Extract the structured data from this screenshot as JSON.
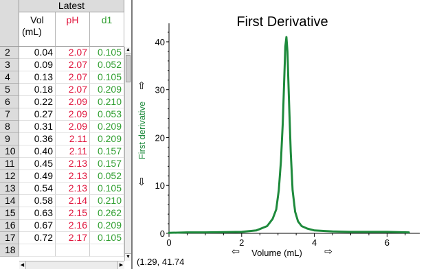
{
  "table": {
    "group_label": "Latest",
    "columns": [
      {
        "line1": "Vol",
        "line2": "(mL)",
        "color": "#000000"
      },
      {
        "line1": "pH",
        "line2": "",
        "color": "#e0143c"
      },
      {
        "line1": "d1",
        "line2": "",
        "color": "#2f9e2f"
      }
    ],
    "rows": [
      {
        "n": "2",
        "vol": "0.04",
        "ph": "2.07",
        "d1": "0.105"
      },
      {
        "n": "3",
        "vol": "0.09",
        "ph": "2.07",
        "d1": "0.052"
      },
      {
        "n": "4",
        "vol": "0.13",
        "ph": "2.07",
        "d1": "0.105"
      },
      {
        "n": "5",
        "vol": "0.18",
        "ph": "2.07",
        "d1": "0.209"
      },
      {
        "n": "6",
        "vol": "0.22",
        "ph": "2.09",
        "d1": "0.210"
      },
      {
        "n": "7",
        "vol": "0.27",
        "ph": "2.09",
        "d1": "0.053"
      },
      {
        "n": "8",
        "vol": "0.31",
        "ph": "2.09",
        "d1": "0.209"
      },
      {
        "n": "9",
        "vol": "0.36",
        "ph": "2.11",
        "d1": "0.209"
      },
      {
        "n": "10",
        "vol": "0.40",
        "ph": "2.11",
        "d1": "0.157"
      },
      {
        "n": "11",
        "vol": "0.45",
        "ph": "2.13",
        "d1": "0.157"
      },
      {
        "n": "12",
        "vol": "0.49",
        "ph": "2.13",
        "d1": "0.052"
      },
      {
        "n": "13",
        "vol": "0.54",
        "ph": "2.13",
        "d1": "0.105"
      },
      {
        "n": "14",
        "vol": "0.58",
        "ph": "2.14",
        "d1": "0.210"
      },
      {
        "n": "15",
        "vol": "0.63",
        "ph": "2.15",
        "d1": "0.262"
      },
      {
        "n": "16",
        "vol": "0.67",
        "ph": "2.16",
        "d1": "0.209"
      },
      {
        "n": "17",
        "vol": "0.72",
        "ph": "2.17",
        "d1": "0.105"
      },
      {
        "n": "18",
        "vol": "",
        "ph": "",
        "d1": ""
      }
    ]
  },
  "graph": {
    "cursor_readout": "(1.29, 41.74",
    "autoscale_arrows": {
      "y_up": "⇧",
      "y_down": "⇩",
      "x_left": "⇦",
      "x_right": "⇨"
    }
  },
  "chart_data": {
    "type": "line",
    "title": "First Derivative",
    "xlabel": "Volume (mL)",
    "ylabel": "First derivative",
    "xlim": [
      0,
      6.9
    ],
    "ylim": [
      0,
      43
    ],
    "x_ticks": [
      "0",
      "2",
      "4",
      "6"
    ],
    "y_ticks": [
      "0",
      "10",
      "20",
      "30",
      "40"
    ],
    "line_color": "#1e8a3c",
    "series": [
      {
        "x": [
          0,
          0.5,
          1.0,
          1.5,
          2.0,
          2.4,
          2.7,
          2.85,
          2.95,
          3.02,
          3.08,
          3.13,
          3.17,
          3.2,
          3.23,
          3.26,
          3.3,
          3.35,
          3.4,
          3.47,
          3.55,
          3.65,
          3.8,
          4.0,
          4.5,
          5.0,
          5.5,
          6.0,
          6.6
        ],
        "y": [
          0.1,
          0.2,
          0.2,
          0.25,
          0.3,
          0.6,
          1.5,
          3,
          5,
          9,
          15,
          23,
          32,
          39,
          41,
          38,
          28,
          17,
          9,
          4.5,
          2.5,
          1.5,
          1.0,
          0.6,
          0.4,
          0.3,
          0.3,
          0.3,
          0.2
        ]
      }
    ]
  }
}
